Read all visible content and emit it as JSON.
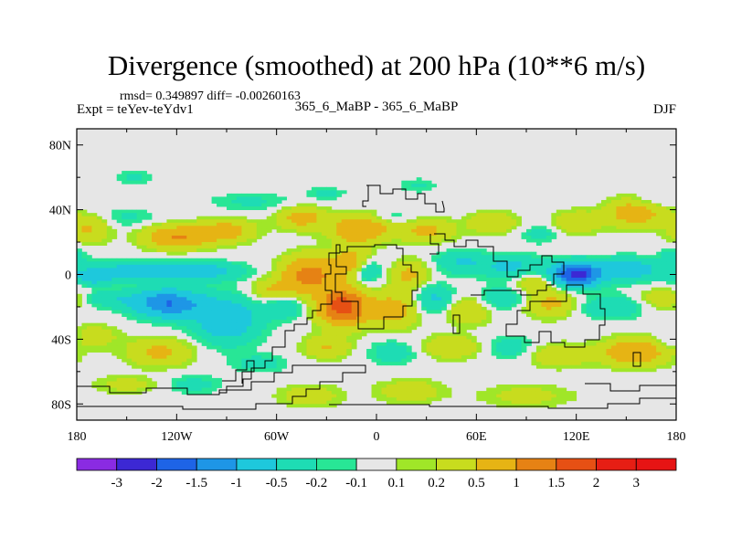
{
  "chart_data": {
    "type": "heatmap",
    "title": "Divergence (smoothed) at 200 hPa (10**6 m/s)",
    "stats_text": "rmsd= 0.349897 diff= -0.00260163",
    "experiment": "Expt = teYev-teYdv1",
    "case": "365_6_MaBP - 365_6_MaBP",
    "season": "DJF",
    "xlim": [
      -180,
      180
    ],
    "ylim": [
      -90,
      90
    ],
    "x_ticks": [
      {
        "value": -180,
        "label": "180"
      },
      {
        "value": -120,
        "label": "120W"
      },
      {
        "value": -60,
        "label": "60W"
      },
      {
        "value": 0,
        "label": "0"
      },
      {
        "value": 60,
        "label": "60E"
      },
      {
        "value": 120,
        "label": "120E"
      },
      {
        "value": 180,
        "label": "180"
      }
    ],
    "y_ticks": [
      {
        "value": 80,
        "label": "80N"
      },
      {
        "value": 40,
        "label": "40N"
      },
      {
        "value": 0,
        "label": "0"
      },
      {
        "value": -40,
        "label": "40S"
      },
      {
        "value": -80,
        "label": "80S"
      }
    ],
    "contour_levels": [
      -3,
      -2,
      -1.5,
      -1,
      -0.5,
      -0.2,
      -0.1,
      0.1,
      0.2,
      0.5,
      1,
      1.5,
      2,
      3
    ],
    "colorbar": {
      "labels": [
        "-3",
        "-2",
        "-1.5",
        "-1",
        "-0.5",
        "-0.2",
        "-0.1",
        "0.1",
        "0.2",
        "0.5",
        "1",
        "1.5",
        "2",
        "3"
      ],
      "colors": [
        "#8a2be2",
        "#3c28d4",
        "#1e64e6",
        "#1e96e6",
        "#1ec8dc",
        "#1edcb4",
        "#28e696",
        "#e6e6e6",
        "#a0e628",
        "#c8dc1e",
        "#e6b414",
        "#e68214",
        "#e65014",
        "#e61e14",
        "#e61414"
      ]
    },
    "background_color": "#e6e6e6",
    "features": [
      {
        "lon": -173,
        "lat": 28,
        "amp": 0.55,
        "sx": 9,
        "sy": 6
      },
      {
        "lon": -120,
        "lat": 23,
        "amp": 1.0,
        "sx": 14,
        "sy": 5
      },
      {
        "lon": -90,
        "lat": 27,
        "amp": 0.7,
        "sx": 12,
        "sy": 5
      },
      {
        "lon": -150,
        "lat": 35,
        "amp": -0.25,
        "sx": 12,
        "sy": 4
      },
      {
        "lon": -75,
        "lat": 45,
        "amp": -0.25,
        "sx": 18,
        "sy": 4
      },
      {
        "lon": -45,
        "lat": 35,
        "amp": 0.7,
        "sx": 10,
        "sy": 5
      },
      {
        "lon": -30,
        "lat": 50,
        "amp": -0.25,
        "sx": 8,
        "sy": 3
      },
      {
        "lon": 25,
        "lat": 55,
        "amp": -0.25,
        "sx": 8,
        "sy": 3
      },
      {
        "lon": -145,
        "lat": 60,
        "amp": -0.25,
        "sx": 8,
        "sy": 3
      },
      {
        "lon": -10,
        "lat": 28,
        "amp": 1.0,
        "sx": 12,
        "sy": 6
      },
      {
        "lon": 10,
        "lat": 35,
        "amp": -0.25,
        "sx": 8,
        "sy": 3
      },
      {
        "lon": 30,
        "lat": 27,
        "amp": 0.6,
        "sx": 12,
        "sy": 5
      },
      {
        "lon": 70,
        "lat": 32,
        "amp": 0.5,
        "sx": 10,
        "sy": 5
      },
      {
        "lon": 98,
        "lat": 25,
        "amp": -0.3,
        "sx": 9,
        "sy": 4
      },
      {
        "lon": 120,
        "lat": 32,
        "amp": 0.5,
        "sx": 10,
        "sy": 5
      },
      {
        "lon": 155,
        "lat": 38,
        "amp": 0.8,
        "sx": 12,
        "sy": 6
      },
      {
        "lon": 165,
        "lat": 45,
        "amp": -0.2,
        "sx": 8,
        "sy": 3
      },
      {
        "lon": 178,
        "lat": 12,
        "amp": -0.3,
        "sx": 6,
        "sy": 4
      },
      {
        "lon": -155,
        "lat": 2,
        "amp": -0.6,
        "sx": 25,
        "sy": 4
      },
      {
        "lon": -110,
        "lat": 2,
        "amp": -0.8,
        "sx": 20,
        "sy": 4
      },
      {
        "lon": -170,
        "lat": -3,
        "amp": -0.5,
        "sx": 8,
        "sy": 3
      },
      {
        "lon": -40,
        "lat": 0,
        "amp": 1.2,
        "sx": 12,
        "sy": 8
      },
      {
        "lon": -15,
        "lat": 8,
        "amp": 0.7,
        "sx": 8,
        "sy": 6
      },
      {
        "lon": -5,
        "lat": 2,
        "amp": -0.6,
        "sx": 6,
        "sy": 5
      },
      {
        "lon": 20,
        "lat": 0,
        "amp": 0.6,
        "sx": 8,
        "sy": 6
      },
      {
        "lon": 50,
        "lat": 8,
        "amp": -0.5,
        "sx": 10,
        "sy": 5
      },
      {
        "lon": 80,
        "lat": 5,
        "amp": -0.6,
        "sx": 14,
        "sy": 5
      },
      {
        "lon": 120,
        "lat": 0,
        "amp": -2.2,
        "sx": 10,
        "sy": 5
      },
      {
        "lon": 150,
        "lat": 3,
        "amp": -0.8,
        "sx": 12,
        "sy": 5
      },
      {
        "lon": 95,
        "lat": -5,
        "amp": 0.5,
        "sx": 8,
        "sy": 4
      },
      {
        "lon": -160,
        "lat": -15,
        "amp": -0.4,
        "sx": 12,
        "sy": 4
      },
      {
        "lon": -125,
        "lat": -18,
        "amp": -1.5,
        "sx": 14,
        "sy": 6
      },
      {
        "lon": -90,
        "lat": -28,
        "amp": -0.9,
        "sx": 14,
        "sy": 10
      },
      {
        "lon": -62,
        "lat": -10,
        "amp": 0.5,
        "sx": 10,
        "sy": 5
      },
      {
        "lon": -55,
        "lat": -20,
        "amp": -0.5,
        "sx": 8,
        "sy": 5
      },
      {
        "lon": -20,
        "lat": -20,
        "amp": 1.8,
        "sx": 10,
        "sy": 8
      },
      {
        "lon": 10,
        "lat": -22,
        "amp": 0.7,
        "sx": 10,
        "sy": 8
      },
      {
        "lon": 35,
        "lat": -15,
        "amp": -0.6,
        "sx": 8,
        "sy": 6
      },
      {
        "lon": 55,
        "lat": -22,
        "amp": 0.5,
        "sx": 10,
        "sy": 6
      },
      {
        "lon": 75,
        "lat": -15,
        "amp": -0.5,
        "sx": 10,
        "sy": 5
      },
      {
        "lon": 105,
        "lat": -18,
        "amp": 0.6,
        "sx": 12,
        "sy": 6
      },
      {
        "lon": 140,
        "lat": -20,
        "amp": -0.5,
        "sx": 14,
        "sy": 5
      },
      {
        "lon": 172,
        "lat": -15,
        "amp": 0.4,
        "sx": 10,
        "sy": 5
      },
      {
        "lon": -170,
        "lat": -38,
        "amp": 0.4,
        "sx": 10,
        "sy": 5
      },
      {
        "lon": -130,
        "lat": -48,
        "amp": 0.6,
        "sx": 14,
        "sy": 6
      },
      {
        "lon": -70,
        "lat": -55,
        "amp": -0.3,
        "sx": 12,
        "sy": 4
      },
      {
        "lon": -30,
        "lat": -45,
        "amp": 0.5,
        "sx": 10,
        "sy": 5
      },
      {
        "lon": 10,
        "lat": -48,
        "amp": -0.4,
        "sx": 10,
        "sy": 5
      },
      {
        "lon": 45,
        "lat": -45,
        "amp": 0.5,
        "sx": 12,
        "sy": 5
      },
      {
        "lon": 80,
        "lat": -45,
        "amp": -0.35,
        "sx": 10,
        "sy": 5
      },
      {
        "lon": 110,
        "lat": -50,
        "amp": 0.5,
        "sx": 12,
        "sy": 5
      },
      {
        "lon": 155,
        "lat": -48,
        "amp": 0.9,
        "sx": 14,
        "sy": 6
      },
      {
        "lon": 175,
        "lat": -40,
        "amp": -0.3,
        "sx": 6,
        "sy": 4
      },
      {
        "lon": -150,
        "lat": -68,
        "amp": 0.3,
        "sx": 14,
        "sy": 4
      },
      {
        "lon": -110,
        "lat": -68,
        "amp": -0.3,
        "sx": 12,
        "sy": 4
      },
      {
        "lon": -40,
        "lat": -75,
        "amp": 0.35,
        "sx": 14,
        "sy": 5
      },
      {
        "lon": 20,
        "lat": -72,
        "amp": 0.4,
        "sx": 14,
        "sy": 5
      },
      {
        "lon": 90,
        "lat": -75,
        "amp": 0.3,
        "sx": 20,
        "sy": 5
      }
    ]
  }
}
